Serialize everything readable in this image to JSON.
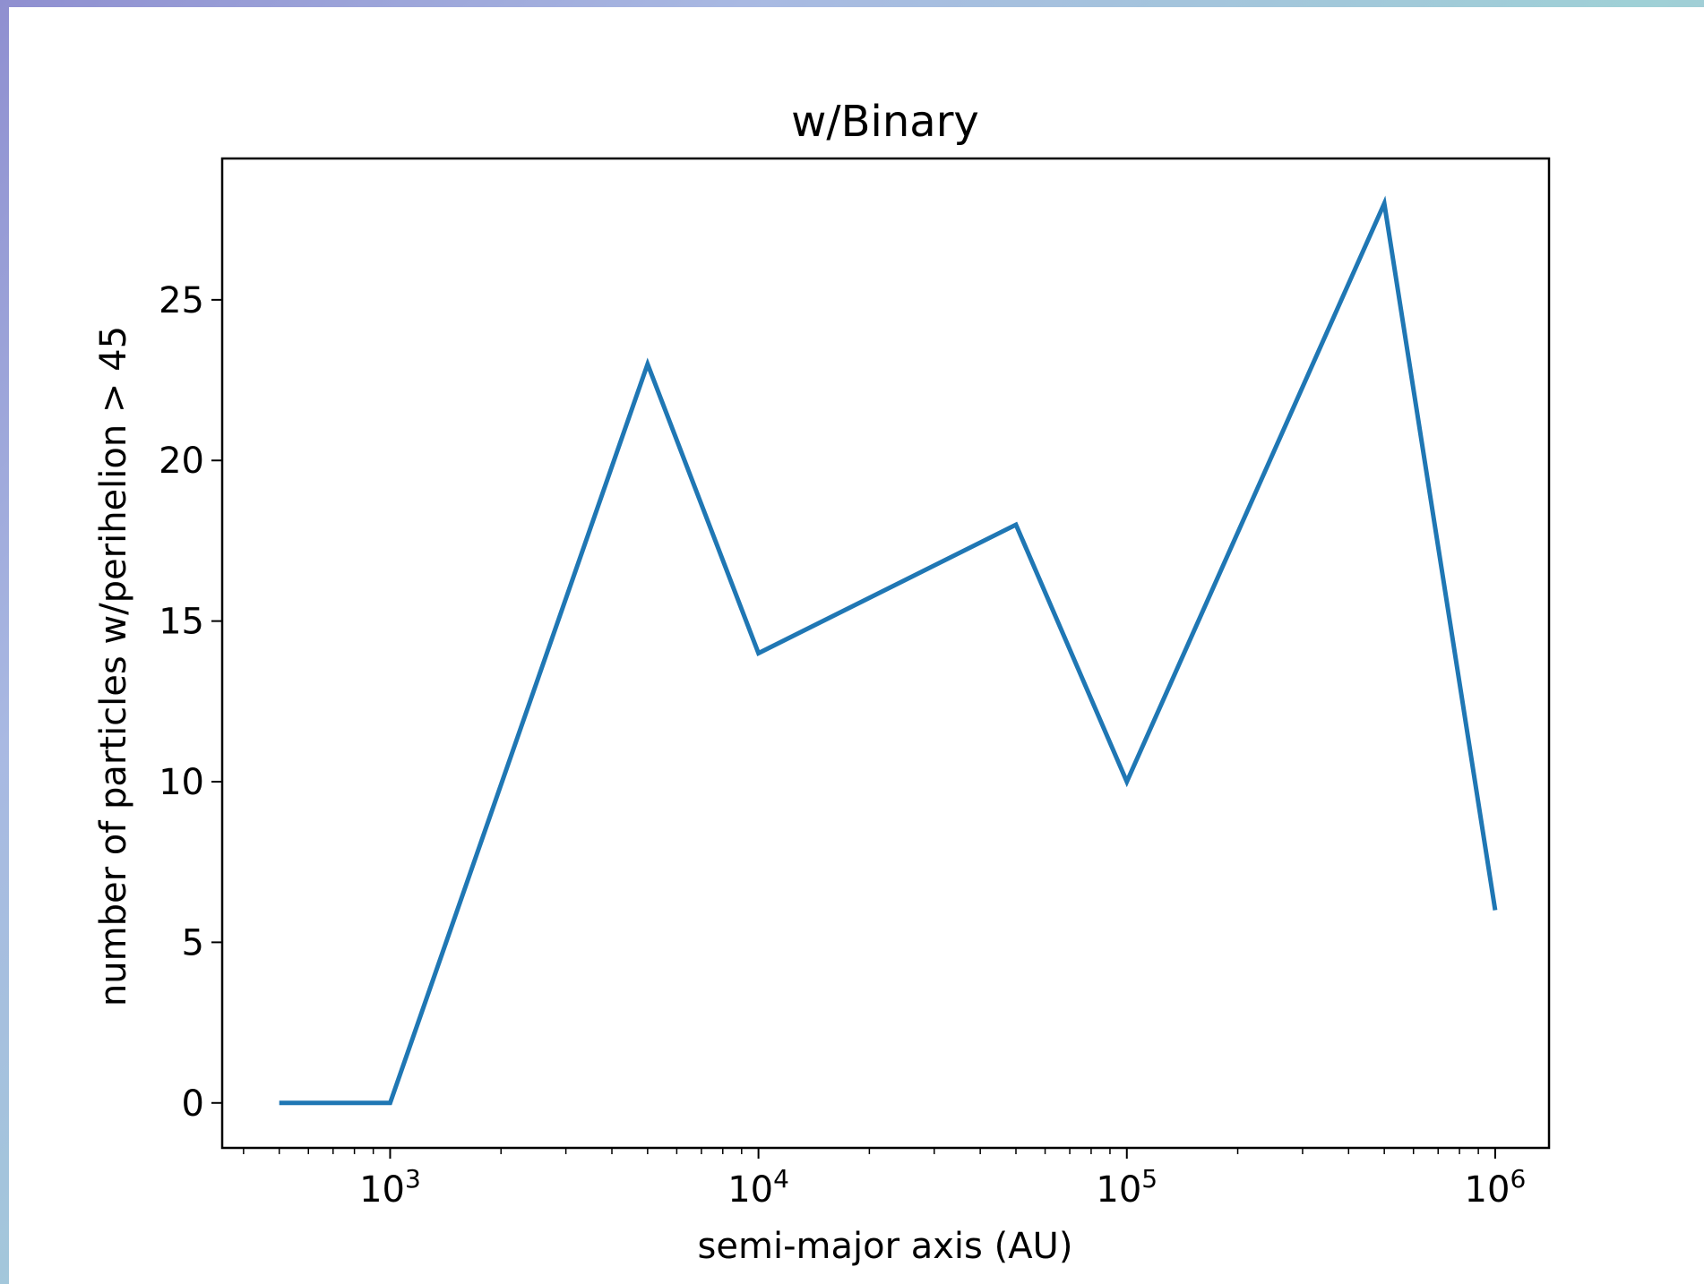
{
  "chart_data": {
    "type": "line",
    "title": "w/Binary",
    "xlabel": "semi-major axis (AU)",
    "ylabel": "number of particles w/perihelion > 45",
    "xscale": "log",
    "xlim": [
      350,
      1400000
    ],
    "ylim": [
      -1.4,
      29.4
    ],
    "x_ticks": [
      {
        "value": 1000,
        "base": "10",
        "exp": "3"
      },
      {
        "value": 10000,
        "base": "10",
        "exp": "4"
      },
      {
        "value": 100000,
        "base": "10",
        "exp": "5"
      },
      {
        "value": 1000000,
        "base": "10",
        "exp": "6"
      }
    ],
    "y_ticks": [
      0,
      5,
      10,
      15,
      20,
      25
    ],
    "grid": false,
    "line_color": "#1f77b4",
    "series": [
      {
        "x": [
          500,
          1000,
          5000,
          10000,
          50000,
          100000,
          500000,
          1000000
        ],
        "y": [
          0,
          0,
          23,
          14,
          18,
          10,
          28,
          6
        ]
      }
    ]
  }
}
